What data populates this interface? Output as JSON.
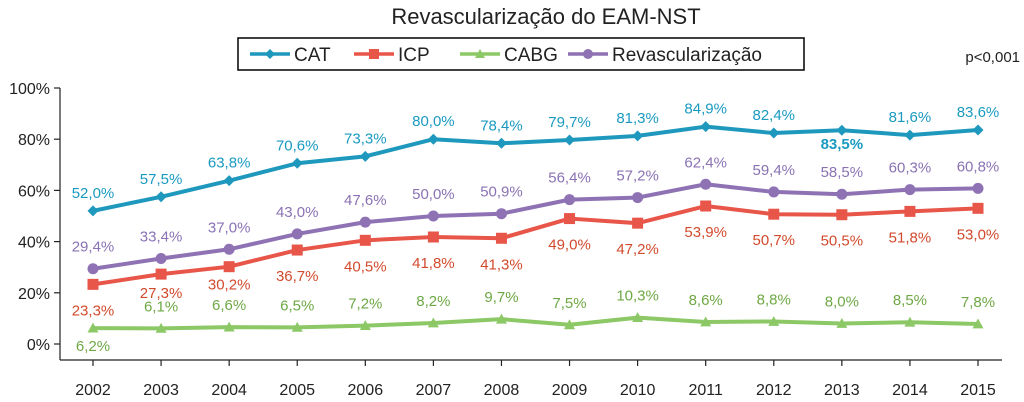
{
  "chart_data": {
    "type": "line",
    "title": "Revascularização do EAM-NST",
    "annotation": "p<0,001",
    "categories": [
      "2002",
      "2003",
      "2004",
      "2005",
      "2006",
      "2007",
      "2008",
      "2009",
      "2010",
      "2011",
      "2012",
      "2013",
      "2014",
      "2015"
    ],
    "ylim": [
      0,
      100
    ],
    "yticks": [
      "0%",
      "20%",
      "40%",
      "60%",
      "80%",
      "100%"
    ],
    "xlabel": "",
    "ylabel": "",
    "legend_position": "top-center",
    "series": [
      {
        "name": "CAT",
        "color": "#1e98bd",
        "marker": "diamond",
        "values": [
          52.0,
          57.5,
          63.8,
          70.6,
          73.3,
          80.0,
          78.4,
          79.7,
          81.3,
          84.9,
          82.4,
          83.5,
          81.6,
          83.6
        ],
        "labels": [
          "52,0%",
          "57,5%",
          "63,8%",
          "70,6%",
          "73,3%",
          "80,0%",
          "78,4%",
          "79,7%",
          "81,3%",
          "84,9%",
          "82,4%",
          "83,5%",
          "81,6%",
          "83,6%"
        ]
      },
      {
        "name": "ICP",
        "color": "#e8564a",
        "marker": "square",
        "values": [
          23.3,
          27.3,
          30.2,
          36.7,
          40.5,
          41.8,
          41.3,
          49.0,
          47.2,
          53.9,
          50.7,
          50.5,
          51.8,
          53.0
        ],
        "labels": [
          "23,3%",
          "27,3%",
          "30,2%",
          "36,7%",
          "40,5%",
          "41,8%",
          "41,3%",
          "49,0%",
          "47,2%",
          "53,9%",
          "50,7%",
          "50,5%",
          "51,8%",
          "53,0%"
        ]
      },
      {
        "name": "CABG",
        "color": "#8cc866",
        "marker": "triangle",
        "values": [
          6.2,
          6.1,
          6.6,
          6.5,
          7.2,
          8.2,
          9.7,
          7.5,
          10.3,
          8.6,
          8.8,
          8.0,
          8.5,
          7.8
        ],
        "labels": [
          "6,2%",
          "6,1%",
          "6,6%",
          "6,5%",
          "7,2%",
          "8,2%",
          "9,7%",
          "7,5%",
          "10,3%",
          "8,6%",
          "8,8%",
          "8,0%",
          "8,5%",
          "7,8%"
        ]
      },
      {
        "name": "Revascularização",
        "color": "#8e72b4",
        "marker": "circle",
        "values": [
          29.4,
          33.4,
          37.0,
          43.0,
          47.6,
          50.0,
          50.9,
          56.4,
          57.2,
          62.4,
          59.4,
          58.5,
          60.3,
          60.8
        ],
        "labels": [
          "29,4%",
          "33,4%",
          "37,0%",
          "43,0%",
          "47,6%",
          "50,0%",
          "50,9%",
          "56,4%",
          "57,2%",
          "62,4%",
          "59,4%",
          "58,5%",
          "60,3%",
          "60,8%"
        ]
      }
    ]
  }
}
